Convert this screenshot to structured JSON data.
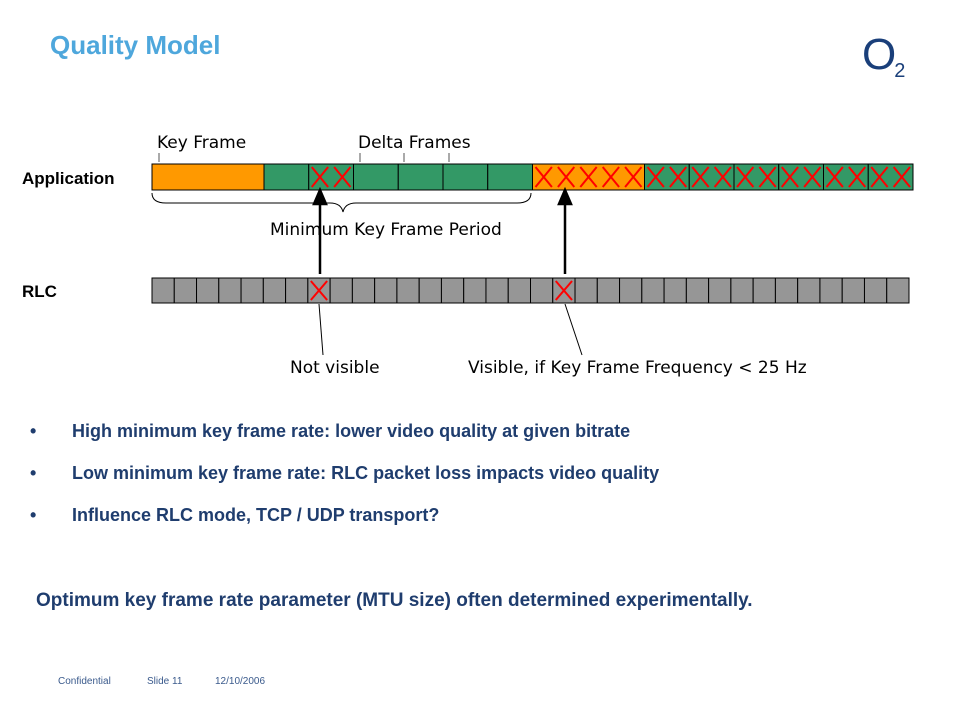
{
  "slide": {
    "title": "Quality Model",
    "logo": {
      "main": "O",
      "sub": "2"
    }
  },
  "diagram": {
    "labels": {
      "key_frame": "Key Frame",
      "delta_frames": "Delta Frames",
      "application": "Application",
      "min_period": "Minimum Key Frame Period",
      "rlc": "RLC",
      "not_visible": "Not visible",
      "visible": "Visible, if Key Frame Frequency < 25 Hz"
    },
    "application_bar": {
      "frames": [
        {
          "type": "key",
          "lost": false
        },
        {
          "type": "delta",
          "lost": false
        },
        {
          "type": "delta",
          "lost": true
        },
        {
          "type": "delta",
          "lost": false
        },
        {
          "type": "delta",
          "lost": false
        },
        {
          "type": "delta",
          "lost": false
        },
        {
          "type": "delta",
          "lost": false
        },
        {
          "type": "key",
          "lost": true
        },
        {
          "type": "delta",
          "lost": true
        },
        {
          "type": "delta",
          "lost": true
        },
        {
          "type": "delta",
          "lost": true
        },
        {
          "type": "delta",
          "lost": true
        },
        {
          "type": "delta",
          "lost": true
        },
        {
          "type": "delta",
          "lost": true
        }
      ]
    },
    "rlc_bar": {
      "count": 34,
      "lost_indices": [
        7,
        18
      ]
    },
    "colors": {
      "key_frame": "#ff9900",
      "delta_frame": "#339966",
      "rlc_block": "#969696",
      "loss_mark": "#ff0000",
      "outline": "#000000"
    }
  },
  "bullets": [
    "High minimum key frame rate: lower video quality at given bitrate",
    "Low minimum key frame rate: RLC packet loss impacts video quality",
    "Influence RLC mode, TCP / UDP transport?"
  ],
  "conclusion": "Optimum key frame rate parameter (MTU size) often determined experimentally.",
  "footer": {
    "confidential": "Confidential",
    "slide": "Slide 11",
    "date": "12/10/2006"
  }
}
